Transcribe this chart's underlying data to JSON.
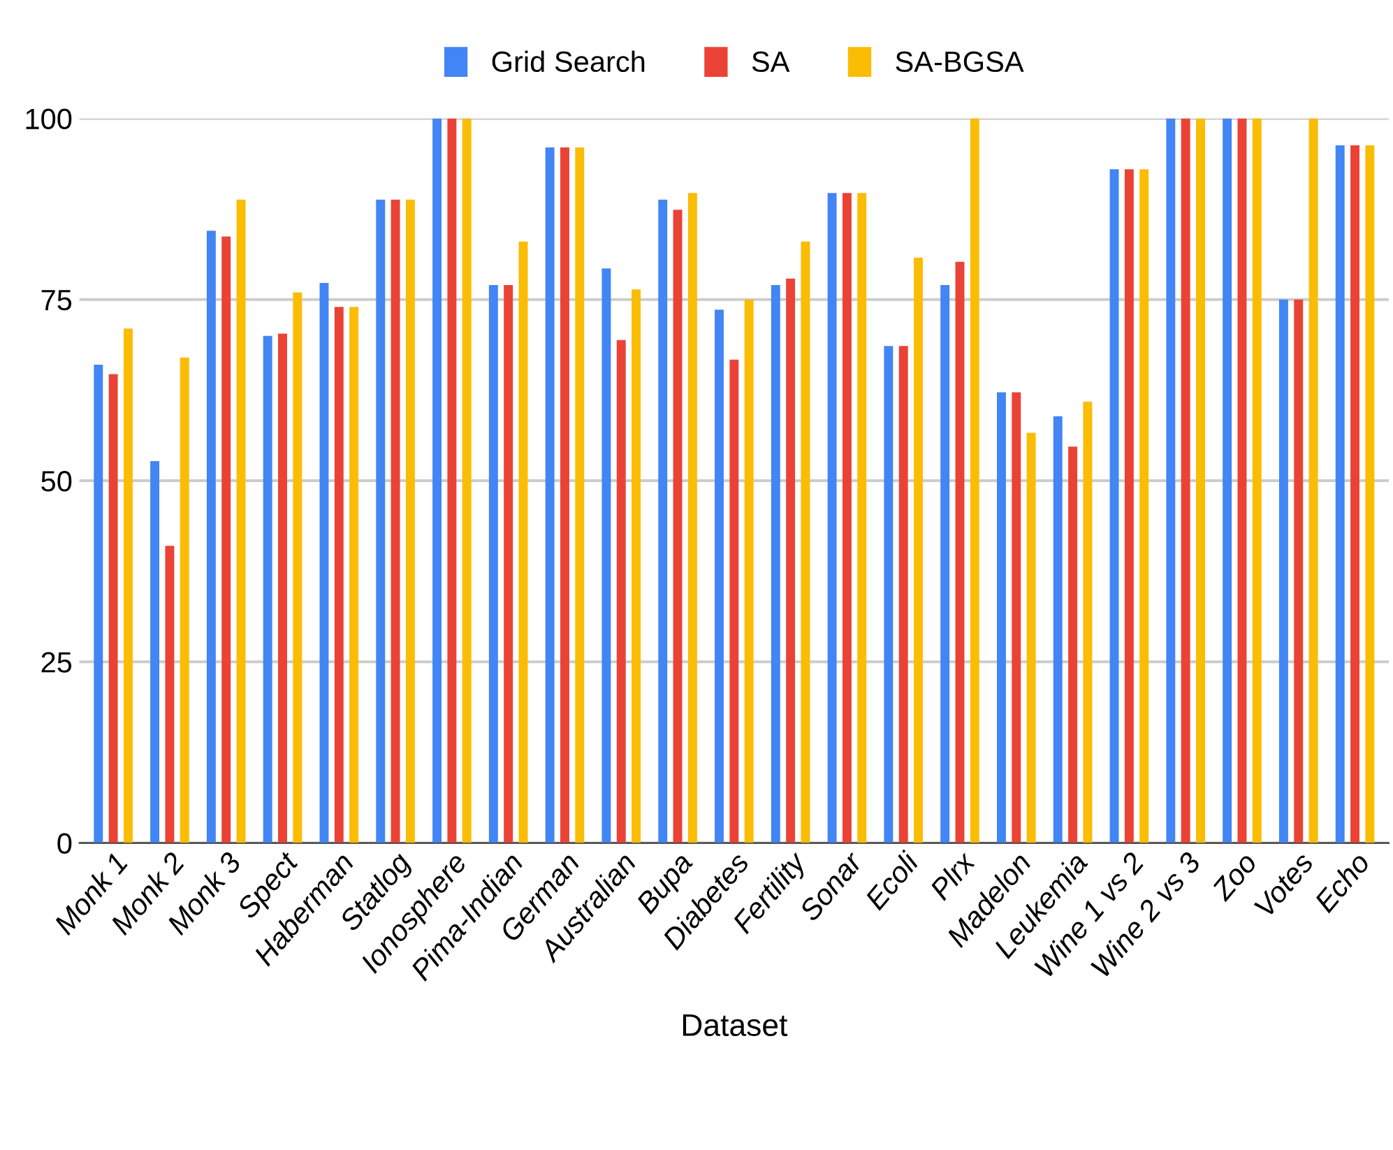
{
  "chart_data": {
    "type": "bar",
    "xlabel": "Dataset",
    "categories": [
      "Monk 1",
      "Monk 2",
      "Monk 3",
      "Spect",
      "Haberman",
      "Statlog",
      "Ionosphere",
      "Pima-Indian",
      "German",
      "Australian",
      "Bupa",
      "Diabetes",
      "Fertility",
      "Sonar",
      "Ecoli",
      "Plrx",
      "Madelon",
      "Leukemia",
      "Wine 1 vs 2",
      "Wine 2 vs 3",
      "Zoo",
      "Votes",
      "Echo"
    ],
    "series": [
      {
        "name": "Grid Search",
        "color": "#4285f4",
        "values": [
          66,
          52.7,
          84.5,
          70,
          77.3,
          88.8,
          100,
          77,
          96,
          79.3,
          88.8,
          73.6,
          77,
          89.7,
          68.6,
          77,
          62.2,
          58.9,
          93,
          100,
          100,
          75,
          96.3
        ]
      },
      {
        "name": "SA",
        "color": "#ea4335",
        "values": [
          64.7,
          41,
          83.7,
          70.3,
          74,
          88.8,
          100,
          77,
          96,
          69.4,
          87.4,
          66.7,
          77.9,
          89.7,
          68.6,
          80.2,
          62.2,
          54.7,
          93,
          100,
          100,
          75,
          96.3
        ]
      },
      {
        "name": "SA-BGSA",
        "color": "#fbbc04",
        "values": [
          71,
          67,
          88.8,
          76,
          74,
          88.8,
          100,
          83,
          96,
          76.4,
          89.7,
          75,
          83,
          89.7,
          80.8,
          100,
          56.6,
          60.9,
          93,
          100,
          100,
          100,
          96.3
        ]
      }
    ],
    "ylim": [
      0,
      100
    ],
    "yticks": [
      0,
      25,
      50,
      75,
      100
    ],
    "grid": "y",
    "legend": "top"
  }
}
